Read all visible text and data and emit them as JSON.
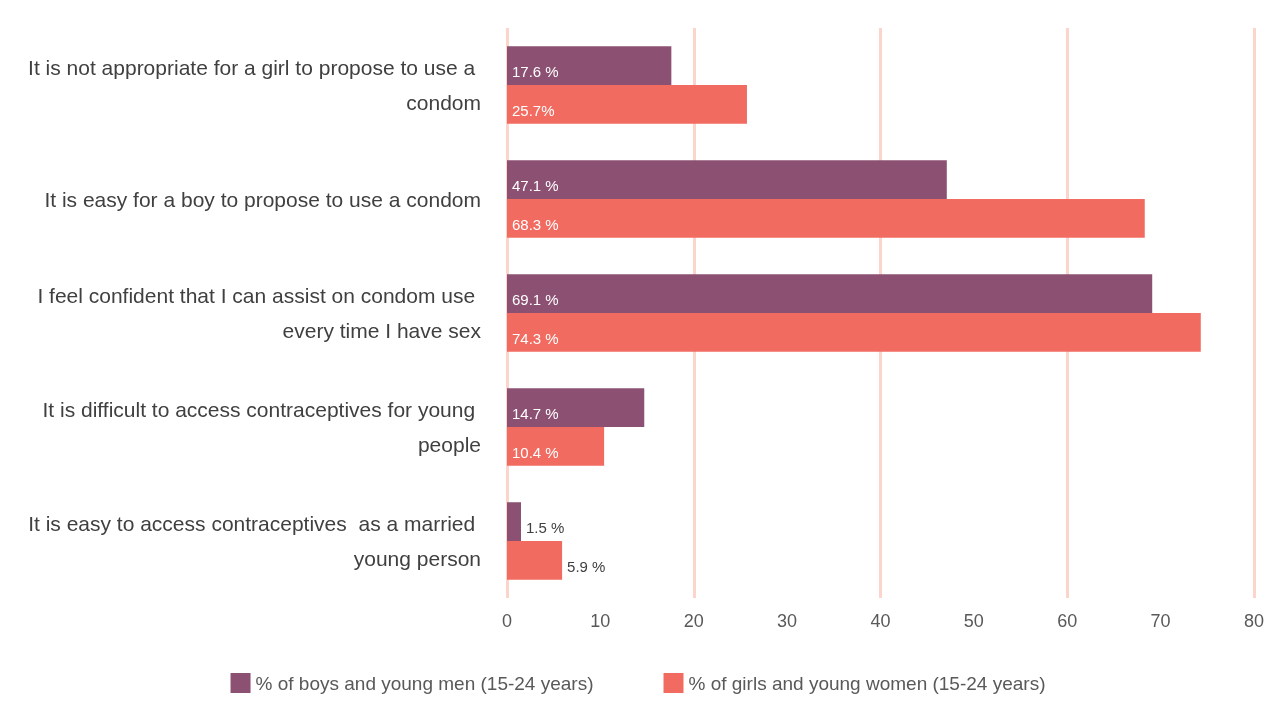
{
  "chart_data": {
    "type": "bar",
    "orientation": "horizontal",
    "categories": [
      "It is not appropriate for a girl to propose to use a condom",
      "It is easy for a boy to propose to use a condom",
      "I feel confident that I can assist on condom use every time I have sex",
      "It is difficult to access contraceptives for young people",
      "It is easy to access contraceptives  as a married young person"
    ],
    "series": [
      {
        "name": "% of boys and young men (15-24 years)",
        "color": "#8b5072",
        "values": [
          17.6,
          47.1,
          69.1,
          14.7,
          1.5
        ],
        "value_labels": [
          "17.6 %",
          "47.1 %",
          "69.1 %",
          "14.7 %",
          "1.5 %"
        ]
      },
      {
        "name": "% of girls and young women (15-24 years)",
        "color": "#f16b61",
        "values": [
          25.7,
          68.3,
          74.3,
          10.4,
          5.9
        ],
        "value_labels": [
          "25.7%",
          "68.3 %",
          "74.3 %",
          "10.4 %",
          "5.9 %"
        ]
      }
    ],
    "xlim": [
      0,
      80
    ],
    "xticks": [
      0,
      10,
      20,
      30,
      40,
      50,
      60,
      70,
      80
    ],
    "grid": "x",
    "legend": "bottom"
  }
}
